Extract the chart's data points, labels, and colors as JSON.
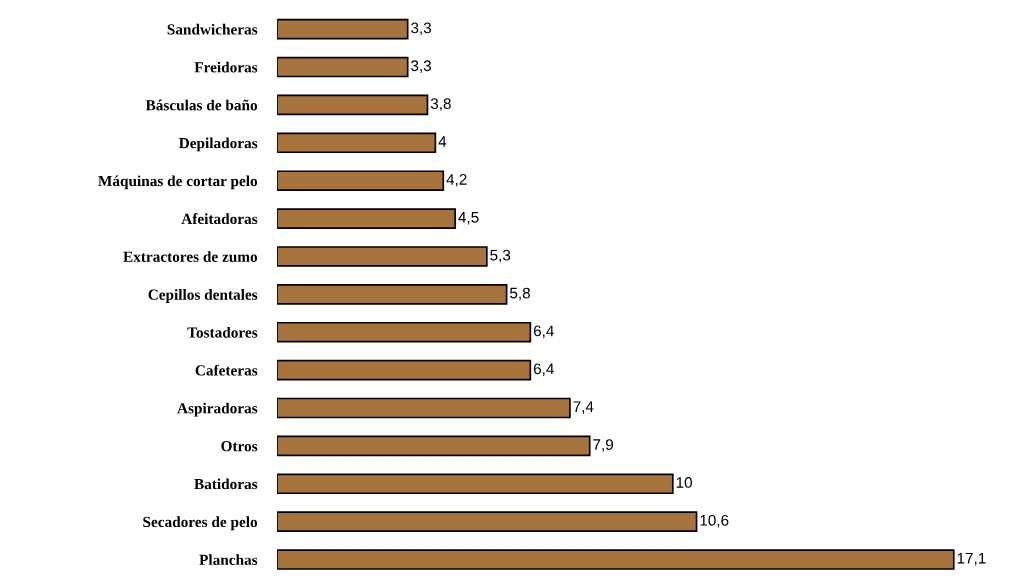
{
  "chart_data": {
    "type": "bar",
    "orientation": "horizontal",
    "categories": [
      "Sandwicheras",
      "Freidoras",
      "Básculas de baño",
      "Depiladoras",
      "Máquinas de cortar pelo",
      "Afeitadoras",
      "Extractores de zumo",
      "Cepillos dentales",
      "Tostadores",
      "Cafeteras",
      "Aspiradoras",
      "Otros",
      "Batidoras",
      "Secadores de pelo",
      "Planchas"
    ],
    "values": [
      3.3,
      3.3,
      3.8,
      4,
      4.2,
      4.5,
      5.3,
      5.8,
      6.4,
      6.4,
      7.4,
      7.9,
      10,
      10.6,
      17.1
    ],
    "value_labels": [
      "3,3",
      "3,3",
      "3,8",
      "4",
      "4,2",
      "4,5",
      "5,3",
      "5,8",
      "6,4",
      "6,4",
      "7,4",
      "7,9",
      "10",
      "10,6",
      "17,1"
    ],
    "color": "#a8743e",
    "tick_labels": "y",
    "grid": false,
    "legend": false
  }
}
